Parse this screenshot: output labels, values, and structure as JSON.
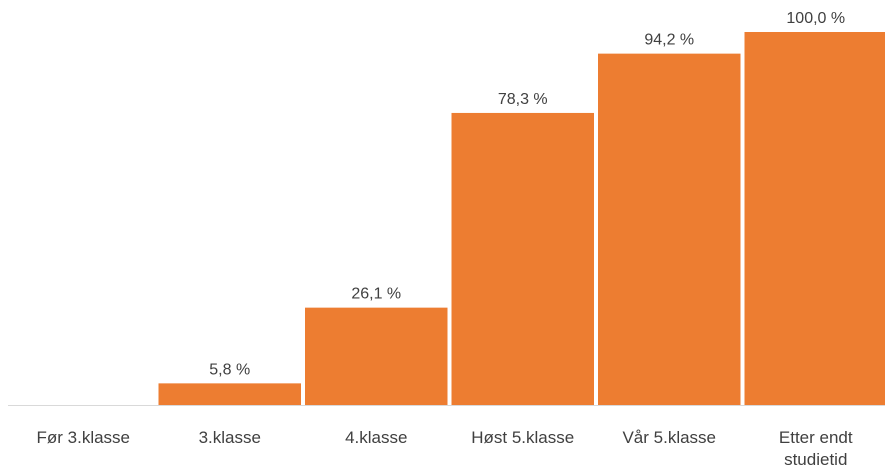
{
  "chart_data": {
    "type": "bar",
    "categories": [
      "Før 3.klasse",
      "3.klasse",
      "4.klasse",
      "Høst 5.klasse",
      "Vår 5.klasse",
      "Etter endt studietid"
    ],
    "values": [
      0,
      5.8,
      26.1,
      78.3,
      94.2,
      100.0
    ],
    "value_labels": [
      null,
      "5,8 %",
      "26,1 %",
      "78,3 %",
      "94,2 %",
      "100,0 %"
    ],
    "color": "#ed7d31"
  }
}
